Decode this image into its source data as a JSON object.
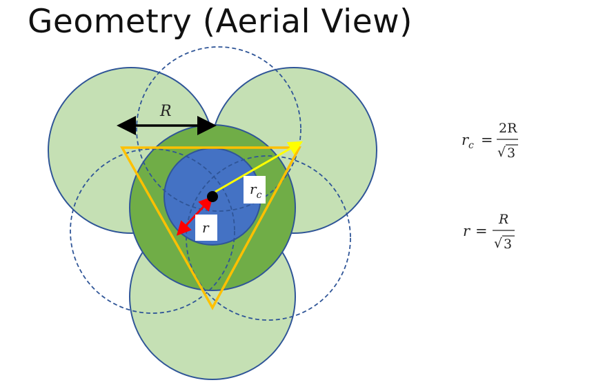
{
  "title": "Geometry (Aerial View)",
  "labels": {
    "R": "R",
    "rc_main": "r",
    "rc_sub": "c",
    "r": "r"
  },
  "formulas": {
    "rc": {
      "lhs_main": "r",
      "lhs_sub": "c",
      "equals": "=",
      "numerator": "2R",
      "radical": "√",
      "radicand": "3"
    },
    "r": {
      "lhs": "r",
      "equals": "=",
      "numerator": "R",
      "radical": "√",
      "radicand": "3"
    }
  },
  "colors": {
    "light_green": "#c5e0b4",
    "mid_green": "#70ad47",
    "blue": "#4472c4",
    "outline": "#2f5597",
    "triangle": "#ffc000",
    "yellow_arrow": "#ffff00",
    "red_arrow": "#ff0000",
    "black": "#000000"
  }
}
